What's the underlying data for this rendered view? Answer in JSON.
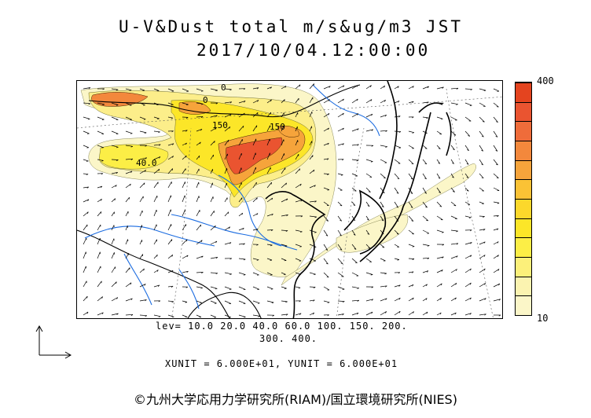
{
  "title": {
    "line1": "U-V&Dust total m/s&ug/m3 JST",
    "line2": "2017/10/04.12:00:00"
  },
  "colorbar": {
    "max_label": "400",
    "min_label": "10",
    "colors": [
      "#fbf6c8",
      "#fbf3b0",
      "#fcf07a",
      "#fcee46",
      "#fce628",
      "#fcd82b",
      "#fac235",
      "#f6a43b",
      "#f3883c",
      "#ef6c3a",
      "#ea5430",
      "#e4441f"
    ]
  },
  "map": {
    "contour_labels": [
      "0",
      "150",
      "150",
      "40.0",
      "0"
    ],
    "colors": {
      "coastline": "#000000",
      "rivers": "#1a6be0",
      "vectors": "#000000",
      "dust_low": "#fbf6c8",
      "dust_mid": "#fce628",
      "dust_high": "#e4441f"
    }
  },
  "legend": {
    "lev_line1": "lev= 10.0 20.0 40.0 60.0 100. 150. 200.",
    "lev_line2": "300. 400.",
    "units": "XUNIT = 6.000E+01, YUNIT = 6.000E+01"
  },
  "credit": "©九州大学応用力学研究所(RIAM)/国立環境研究所(NIES)"
}
